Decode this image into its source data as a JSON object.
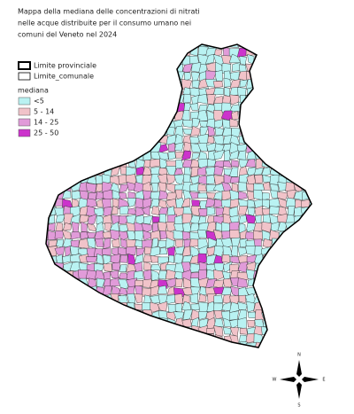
{
  "title": [
    "Mappa della mediana delle concentrazioni di nitrati",
    "nelle acque distribuite per il consumo umano nei",
    "comuni del Veneto nel 2024"
  ],
  "boundaries": [
    {
      "label": "Limite provinciale",
      "stroke_width": 2
    },
    {
      "label": "Limite_comunale",
      "stroke_width": 0.8
    }
  ],
  "legend": {
    "title": "mediana",
    "items": [
      {
        "label": "<5",
        "color": "#b9f2f2"
      },
      {
        "label": "5 - 14",
        "color": "#f1c3c9"
      },
      {
        "label": "14 - 25",
        "color": "#e19bd9"
      },
      {
        "label": "25 - 50",
        "color": "#cc33cc"
      }
    ]
  },
  "compass": {
    "n": "N",
    "w": "W",
    "e": "E",
    "s": "S"
  }
}
